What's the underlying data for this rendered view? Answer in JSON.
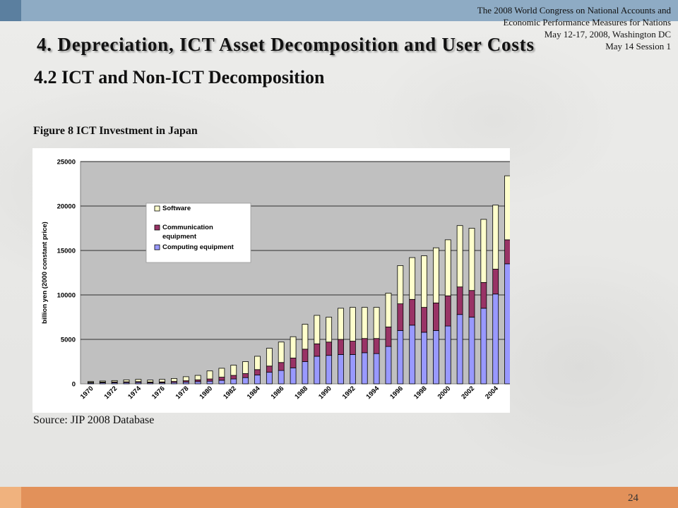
{
  "header": {
    "conference_lines": [
      "The 2008 World Congress on National Accounts and",
      "Economic Performance Measures for Nations",
      "May 12-17, 2008, Washington DC",
      "May 14 Session 1"
    ]
  },
  "slide": {
    "title": "4. Depreciation, ICT Asset Decomposition and User Costs",
    "subtitle": "4.2 ICT and Non-ICT Decomposition",
    "figure_caption": "Figure 8 ICT Investment in Japan",
    "source": "Source: JIP 2008 Database",
    "page_number": "24"
  },
  "colors": {
    "top_bar": "#8eabc4",
    "top_bar_accent": "#5b7f9f",
    "bottom_bar": "#e2915a",
    "bottom_bar_accent": "#f0b27e",
    "plot_background": "#c0c0c0",
    "software": "#ffffcc",
    "communication": "#993366",
    "computing": "#9999ff"
  },
  "chart_data": {
    "type": "bar",
    "stacked": true,
    "title": "",
    "xlabel": "",
    "ylabel": "billion yen (2000 constant price)",
    "ylim": [
      0,
      25000
    ],
    "yticks": [
      0,
      5000,
      10000,
      15000,
      20000,
      25000
    ],
    "grid": true,
    "legend_position": "top-left",
    "categories": [
      "1970",
      "1971",
      "1972",
      "1973",
      "1974",
      "1975",
      "1976",
      "1977",
      "1978",
      "1979",
      "1980",
      "1981",
      "1982",
      "1983",
      "1984",
      "1985",
      "1986",
      "1987",
      "1988",
      "1989",
      "1990",
      "1991",
      "1992",
      "1993",
      "1994",
      "1995",
      "1996",
      "1997",
      "1998",
      "1999",
      "2000",
      "2001",
      "2002",
      "2003",
      "2004",
      "2005"
    ],
    "tick_labels": [
      "1970",
      "1972",
      "1974",
      "1976",
      "1978",
      "1980",
      "1982",
      "1984",
      "1986",
      "1988",
      "1990",
      "1992",
      "1994",
      "1996",
      "1998",
      "2000",
      "2002",
      "2004"
    ],
    "legend_order": [
      "Software",
      "Communication equipment",
      "Computing equipment"
    ],
    "series": [
      {
        "name": "Computing equipment",
        "color": "#9999ff",
        "values": [
          100,
          120,
          130,
          140,
          150,
          110,
          120,
          150,
          200,
          250,
          300,
          400,
          550,
          700,
          1000,
          1300,
          1500,
          1800,
          2500,
          3100,
          3200,
          3300,
          3300,
          3500,
          3400,
          4200,
          6000,
          6600,
          5800,
          6000,
          6500,
          7800,
          7500,
          8500,
          10100,
          13500
        ]
      },
      {
        "name": "Communication equipment",
        "color": "#993366",
        "values": [
          60,
          80,
          90,
          90,
          100,
          100,
          100,
          120,
          150,
          200,
          250,
          350,
          400,
          450,
          600,
          700,
          900,
          1100,
          1400,
          1400,
          1500,
          1700,
          1500,
          1600,
          1700,
          2200,
          3000,
          2900,
          2800,
          3100,
          3400,
          3100,
          3000,
          2900,
          2800,
          2700
        ]
      },
      {
        "name": "Software",
        "color": "#ffffcc",
        "values": [
          100,
          120,
          150,
          220,
          250,
          210,
          280,
          330,
          450,
          500,
          900,
          1000,
          1150,
          1350,
          1500,
          2000,
          2300,
          2400,
          2800,
          3200,
          2800,
          3500,
          3800,
          3500,
          3500,
          3800,
          4300,
          4700,
          5800,
          6200,
          6300,
          6900,
          7000,
          7100,
          7200,
          7200
        ]
      }
    ]
  }
}
